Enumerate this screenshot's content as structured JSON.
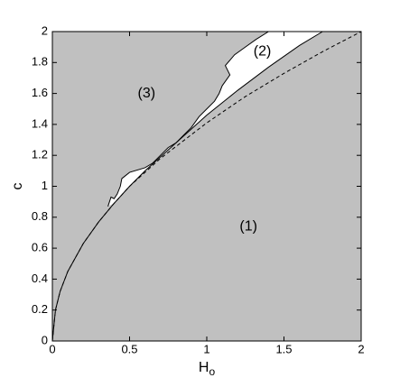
{
  "chart_data": {
    "type": "region",
    "xlabel": "H",
    "xlabel_subscript": "o",
    "ylabel": "c",
    "xlim": [
      0,
      2
    ],
    "ylim": [
      0,
      2
    ],
    "xticks": [
      0,
      0.5,
      1,
      1.5,
      2
    ],
    "yticks": [
      0,
      0.2,
      0.4,
      0.6,
      0.8,
      1,
      1.2,
      1.4,
      1.6,
      1.8,
      2
    ],
    "background": "#c0c0c0",
    "region_color": "#ffffff",
    "series": [
      {
        "color": "#000000",
        "dashed": false,
        "x": [
          0,
          0.02,
          0.05,
          0.1,
          0.2,
          0.3,
          0.4,
          0.5,
          0.6,
          0.8,
          1.0,
          1.2,
          1.4,
          1.6,
          1.75
        ],
        "values": [
          0,
          0.2,
          0.32,
          0.45,
          0.63,
          0.77,
          0.89,
          1.0,
          1.1,
          1.28,
          1.46,
          1.62,
          1.77,
          1.91,
          2.0
        ]
      },
      {
        "color": "#000000",
        "dashed": false,
        "x": [
          0.36,
          0.38,
          0.4,
          0.42,
          0.44,
          0.45,
          0.5,
          0.6,
          0.65,
          0.7,
          0.75,
          0.8,
          0.85,
          0.9,
          0.95,
          1.0,
          1.05,
          1.08,
          1.1,
          1.15,
          1.12,
          1.18,
          1.25,
          1.32,
          1.4
        ],
        "values": [
          0.87,
          0.93,
          0.92,
          0.95,
          1.0,
          1.05,
          1.09,
          1.12,
          1.15,
          1.2,
          1.25,
          1.28,
          1.33,
          1.38,
          1.45,
          1.5,
          1.55,
          1.6,
          1.65,
          1.72,
          1.78,
          1.85,
          1.9,
          1.95,
          2.0
        ]
      },
      {
        "color": "#000000",
        "dashed": true,
        "x": [
          0,
          0.02,
          0.05,
          0.1,
          0.2,
          0.3,
          0.4,
          0.5,
          0.7,
          1.0,
          1.25,
          1.5,
          1.75,
          2.0
        ],
        "values": [
          0,
          0.2,
          0.32,
          0.45,
          0.63,
          0.77,
          0.89,
          1.0,
          1.18,
          1.41,
          1.58,
          1.73,
          1.87,
          2.0
        ]
      }
    ],
    "annotations": [
      {
        "text": "(1)",
        "x": 1.27,
        "y": 0.74
      },
      {
        "text": "(2)",
        "x": 1.36,
        "y": 1.87
      },
      {
        "text": "(3)",
        "x": 0.61,
        "y": 1.6
      }
    ]
  }
}
